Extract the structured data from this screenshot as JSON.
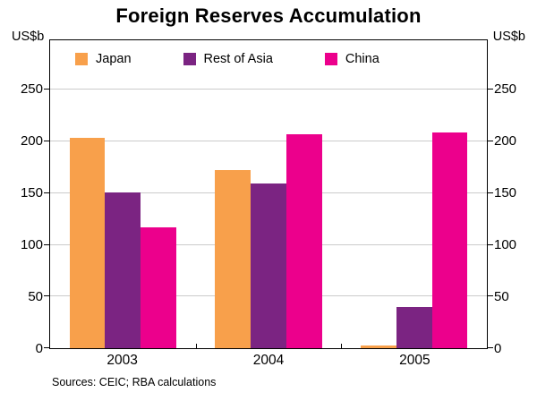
{
  "chart_data": {
    "type": "bar",
    "title": "Foreign Reserves Accumulation",
    "unit_left": "US$b",
    "unit_right": "US$b",
    "categories": [
      "2003",
      "2004",
      "2005"
    ],
    "series": [
      {
        "name": "Japan",
        "color": "#F8A04B",
        "values": [
          204,
          172,
          3
        ]
      },
      {
        "name": "Rest of Asia",
        "color": "#7B2482",
        "values": [
          151,
          159,
          40
        ]
      },
      {
        "name": "China",
        "color": "#EC008C",
        "values": [
          117,
          207,
          209
        ]
      }
    ],
    "y_ticks": [
      0,
      50,
      100,
      150,
      200,
      250
    ],
    "ylim": [
      0,
      298
    ],
    "grid": true,
    "legend_position": "top-inside"
  },
  "source": "Sources: CEIC; RBA calculations"
}
